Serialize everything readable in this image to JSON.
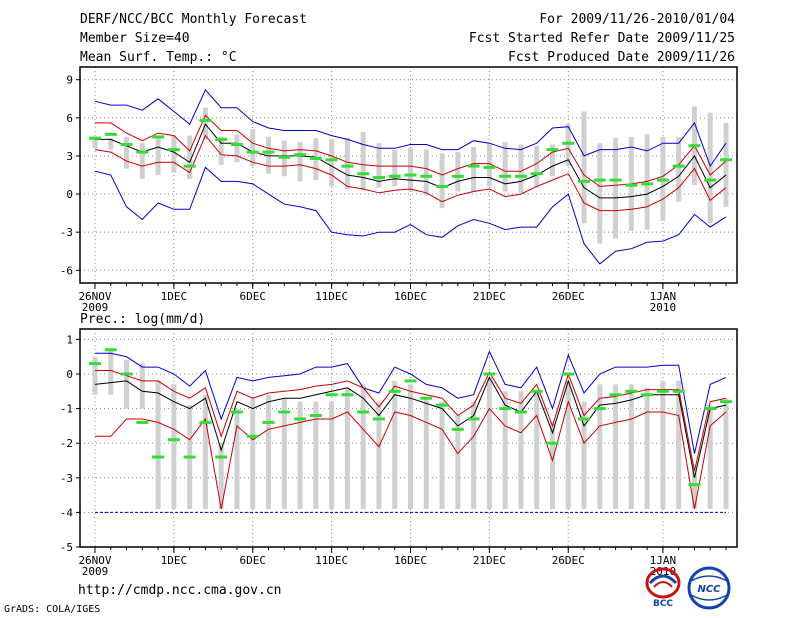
{
  "header": {
    "title": "DERF/NCC/BCC Monthly Forecast",
    "member_size": "Member Size=40",
    "variable": "Mean Surf. Temp.: °C",
    "period": "For 2009/11/26-2010/01/04",
    "started": "Fcst Started Refer Date 2009/11/25",
    "produced": "Fcst Produced Date 2009/11/26"
  },
  "footer": {
    "url": "http://cmdp.ncc.cma.gov.cn",
    "grads": "GrADS: COLA/IGES",
    "logo_left_text": "BCC",
    "logo_right_text": "NCC"
  },
  "colors": {
    "spread": "#0000cc",
    "quartile": "#cc0000",
    "mean": "#000000",
    "box": "#d0d0d0",
    "median": "#33dd33"
  },
  "chart_data": [
    {
      "type": "box-line",
      "title": "Mean Surf. Temp.: °C",
      "ylabel": "°C",
      "ylim": [
        -7,
        10
      ],
      "yticks": [
        -6,
        -3,
        0,
        3,
        6,
        9
      ],
      "x_tick_labels": [
        {
          "day": 0,
          "label": "26NOV",
          "sub": "2009"
        },
        {
          "day": 5,
          "label": "1DEC",
          "sub": ""
        },
        {
          "day": 10,
          "label": "6DEC",
          "sub": ""
        },
        {
          "day": 15,
          "label": "11DEC",
          "sub": ""
        },
        {
          "day": 20,
          "label": "16DEC",
          "sub": ""
        },
        {
          "day": 25,
          "label": "21DEC",
          "sub": ""
        },
        {
          "day": 30,
          "label": "26DEC",
          "sub": ""
        },
        {
          "day": 36,
          "label": "1JAN",
          "sub": "2010"
        }
      ],
      "days": 40,
      "mean": [
        4.3,
        4.3,
        3.8,
        3.3,
        3.7,
        3.3,
        2.5,
        5.5,
        4.0,
        4.0,
        3.3,
        3.0,
        3.0,
        3.0,
        2.9,
        2.2,
        1.5,
        1.3,
        1.0,
        1.2,
        1.1,
        1.0,
        0.5,
        1.0,
        1.3,
        1.3,
        0.8,
        1.0,
        1.5,
        2.2,
        2.7,
        0.5,
        -0.3,
        -0.3,
        -0.2,
        0.0,
        0.6,
        1.4,
        3.0,
        0.5,
        1.5
      ],
      "q_upper": [
        5.6,
        5.6,
        4.8,
        4.2,
        4.8,
        4.6,
        3.4,
        6.2,
        5.0,
        5.0,
        4.0,
        3.6,
        3.4,
        3.5,
        3.4,
        3.0,
        2.5,
        2.3,
        2.2,
        2.2,
        2.2,
        2.0,
        1.5,
        2.0,
        2.4,
        2.4,
        1.8,
        1.8,
        2.4,
        3.3,
        3.6,
        1.5,
        0.6,
        0.7,
        0.8,
        1.0,
        1.4,
        2.3,
        3.8,
        1.5,
        2.6
      ],
      "q_lower": [
        3.5,
        3.3,
        2.6,
        2.2,
        2.5,
        2.5,
        1.7,
        4.6,
        3.1,
        3.0,
        2.5,
        2.2,
        2.2,
        2.3,
        2.0,
        1.5,
        0.6,
        0.4,
        0.1,
        0.3,
        0.4,
        0.1,
        -0.6,
        -0.1,
        0.2,
        0.4,
        -0.2,
        0.0,
        0.6,
        1.1,
        1.6,
        -0.7,
        -1.3,
        -1.3,
        -1.2,
        -1.0,
        -0.4,
        0.5,
        2.0,
        -0.5,
        0.5
      ],
      "spread_upper": [
        7.3,
        7.0,
        7.0,
        6.6,
        7.5,
        6.5,
        5.5,
        8.2,
        6.8,
        6.8,
        5.7,
        5.2,
        5.0,
        5.0,
        5.0,
        4.6,
        4.3,
        3.9,
        3.6,
        3.6,
        3.9,
        3.9,
        3.5,
        3.5,
        4.2,
        4.0,
        3.6,
        3.5,
        4.0,
        5.2,
        5.3,
        3.0,
        3.5,
        3.5,
        3.7,
        3.4,
        4.0,
        4.0,
        5.6,
        2.2,
        4.0
      ],
      "spread_lower": [
        1.8,
        1.5,
        -1.0,
        -2.0,
        -0.7,
        -1.2,
        -1.2,
        2.1,
        1.0,
        1.0,
        0.8,
        0.0,
        -0.8,
        -1.0,
        -1.3,
        -3.0,
        -3.2,
        -3.3,
        -3.0,
        -3.0,
        -2.4,
        -3.2,
        -3.4,
        -2.5,
        -2.0,
        -2.3,
        -2.8,
        -2.6,
        -2.6,
        -1.0,
        0.0,
        -3.9,
        -5.5,
        -4.5,
        -4.3,
        -3.8,
        -3.7,
        -3.2,
        -1.6,
        -2.6,
        -1.8
      ],
      "box_top": [
        4.5,
        4.4,
        4.5,
        4.0,
        4.4,
        4.6,
        4.6,
        6.8,
        4.5,
        4.7,
        5.1,
        4.5,
        4.2,
        4.1,
        4.4,
        4.3,
        4.4,
        4.9,
        4.0,
        3.5,
        3.6,
        3.5,
        3.2,
        3.3,
        3.7,
        4.0,
        4.1,
        3.9,
        3.8,
        3.9,
        5.5,
        6.5,
        4.0,
        4.4,
        4.5,
        4.7,
        4.5,
        4.5,
        6.9,
        6.4,
        5.6
      ],
      "box_bottom": [
        3.6,
        3.5,
        2.0,
        1.2,
        1.5,
        1.7,
        1.2,
        4.3,
        2.3,
        2.5,
        2.2,
        1.6,
        1.4,
        1.0,
        1.1,
        0.6,
        0.4,
        0.3,
        0.5,
        0.6,
        0.2,
        -0.1,
        -1.1,
        0.2,
        0.2,
        0.6,
        0.2,
        0.1,
        0.5,
        1.4,
        2.2,
        -2.3,
        -3.9,
        -3.5,
        -2.9,
        -2.8,
        -2.1,
        -0.6,
        0.7,
        -2.3,
        -1.0
      ],
      "median": [
        4.4,
        4.7,
        3.9,
        3.3,
        4.5,
        3.5,
        2.2,
        5.8,
        4.3,
        3.9,
        3.3,
        3.3,
        2.9,
        3.1,
        2.8,
        2.7,
        2.2,
        1.6,
        1.3,
        1.4,
        1.5,
        1.4,
        0.6,
        1.4,
        2.2,
        2.1,
        1.4,
        1.4,
        1.6,
        3.5,
        4.0,
        1.0,
        1.1,
        1.1,
        0.7,
        0.8,
        1.1,
        2.2,
        3.8,
        1.1,
        2.7
      ]
    },
    {
      "type": "box-line",
      "title": "Prec.: log(mm/d)",
      "ylabel": "log(mm/d)",
      "ylim": [
        -5,
        1.3
      ],
      "yticks": [
        -5,
        -4,
        -3,
        -2,
        -1,
        0,
        1
      ],
      "x_tick_labels": [
        {
          "day": 0,
          "label": "26NOV",
          "sub": "2009"
        },
        {
          "day": 5,
          "label": "1DEC",
          "sub": ""
        },
        {
          "day": 10,
          "label": "6DEC",
          "sub": ""
        },
        {
          "day": 15,
          "label": "11DEC",
          "sub": ""
        },
        {
          "day": 20,
          "label": "16DEC",
          "sub": ""
        },
        {
          "day": 25,
          "label": "21DEC",
          "sub": ""
        },
        {
          "day": 30,
          "label": "26DEC",
          "sub": ""
        },
        {
          "day": 36,
          "label": "1JAN",
          "sub": "2010"
        }
      ],
      "days": 40,
      "floor": -4,
      "mean": [
        -0.3,
        -0.25,
        -0.2,
        -0.5,
        -0.55,
        -0.8,
        -1.0,
        -0.7,
        -2.2,
        -0.8,
        -1.0,
        -0.8,
        -0.7,
        -0.7,
        -0.6,
        -0.5,
        -0.4,
        -0.7,
        -1.2,
        -0.6,
        -0.7,
        -0.85,
        -1.0,
        -1.5,
        -1.2,
        -0.1,
        -0.9,
        -1.1,
        -0.5,
        -1.7,
        -0.2,
        -1.5,
        -0.9,
        -0.85,
        -0.75,
        -0.6,
        -0.6,
        -0.6,
        -3.0,
        -1.0,
        -0.9
      ],
      "q_upper": [
        0.1,
        0.1,
        -0.05,
        -0.2,
        -0.2,
        -0.5,
        -0.7,
        -0.4,
        -1.8,
        -0.5,
        -0.7,
        -0.55,
        -0.5,
        -0.45,
        -0.35,
        -0.3,
        -0.2,
        -0.4,
        -0.95,
        -0.35,
        -0.5,
        -0.6,
        -0.7,
        -1.2,
        -0.9,
        0.05,
        -0.7,
        -0.85,
        -0.3,
        -1.5,
        0.0,
        -1.2,
        -0.7,
        -0.65,
        -0.55,
        -0.45,
        -0.45,
        -0.45,
        -2.8,
        -0.8,
        -0.7
      ],
      "q_lower": [
        -1.8,
        -1.8,
        -1.3,
        -1.3,
        -1.4,
        -1.6,
        -1.9,
        -1.3,
        -3.9,
        -1.5,
        -1.9,
        -1.6,
        -1.5,
        -1.4,
        -1.3,
        -1.3,
        -1.1,
        -1.6,
        -2.1,
        -1.1,
        -1.2,
        -1.4,
        -1.6,
        -2.3,
        -1.8,
        -1.0,
        -1.5,
        -1.7,
        -1.2,
        -2.5,
        -0.8,
        -2.0,
        -1.5,
        -1.4,
        -1.3,
        -1.1,
        -1.1,
        -1.2,
        -3.9,
        -1.5,
        -1.1
      ],
      "spread_upper": [
        0.6,
        0.6,
        0.5,
        0.2,
        0.2,
        0.0,
        -0.35,
        0.1,
        -1.3,
        -0.1,
        -0.2,
        -0.1,
        -0.05,
        0.0,
        0.2,
        0.2,
        0.3,
        -0.4,
        -0.55,
        0.2,
        0.0,
        -0.3,
        -0.4,
        -0.7,
        -0.6,
        0.65,
        -0.3,
        -0.4,
        0.2,
        -1.0,
        0.55,
        -0.55,
        0.0,
        0.2,
        0.2,
        0.2,
        0.25,
        0.25,
        -2.3,
        -0.3,
        -0.1
      ],
      "spread_lower": [
        -4,
        -4,
        -4,
        -4,
        -4,
        -4,
        -4,
        -4,
        -4,
        -4,
        -4,
        -4,
        -4,
        -4,
        -4,
        -4,
        -4,
        -4,
        -4,
        -4,
        -4,
        -4,
        -4,
        -4,
        -4,
        -4,
        -4,
        -4,
        -4,
        -4,
        -4,
        -4,
        -4,
        -4,
        -4,
        -4,
        -4,
        -4,
        -4,
        -4,
        -4
      ],
      "box_top": [
        0.5,
        0.7,
        0.4,
        0.3,
        -0.2,
        -0.3,
        -0.9,
        -0.6,
        -2.0,
        -1.0,
        -0.7,
        -0.6,
        -0.7,
        -0.8,
        -0.8,
        -0.8,
        -0.4,
        -0.3,
        -0.8,
        -0.2,
        -0.3,
        -0.7,
        -0.8,
        -1.2,
        -0.8,
        -0.1,
        -0.5,
        -0.5,
        -0.5,
        -1.4,
        -0.2,
        -0.8,
        -0.3,
        -0.3,
        -0.3,
        -0.4,
        -0.2,
        -0.2,
        -2.8,
        -0.9,
        -0.7
      ],
      "box_bottom": [
        -0.6,
        -0.6,
        -1.0,
        -1.0,
        -3.9,
        -3.9,
        -3.9,
        -3.9,
        -3.9,
        -3.9,
        -3.9,
        -3.9,
        -3.9,
        -3.9,
        -3.9,
        -3.9,
        -3.9,
        -3.9,
        -3.9,
        -3.9,
        -3.9,
        -3.9,
        -3.9,
        -3.9,
        -3.9,
        -3.9,
        -3.9,
        -3.9,
        -3.9,
        -3.9,
        -3.9,
        -3.9,
        -3.9,
        -3.9,
        -3.9,
        -3.9,
        -3.9,
        -3.9,
        -3.9,
        -3.9,
        -3.9
      ],
      "median": [
        0.3,
        0.7,
        0.0,
        -1.4,
        -2.4,
        -1.9,
        -2.4,
        -1.4,
        -2.4,
        -1.1,
        -1.8,
        -1.4,
        -1.1,
        -1.3,
        -1.2,
        -0.6,
        -0.6,
        -1.1,
        -1.3,
        -0.5,
        -0.2,
        -0.7,
        -0.9,
        -1.6,
        -1.3,
        0.0,
        -1.0,
        -1.1,
        -0.5,
        -2.0,
        0.0,
        -1.3,
        -1.0,
        -0.6,
        -0.5,
        -0.6,
        -0.5,
        -0.5,
        -3.2,
        -1.0,
        -0.8
      ]
    }
  ]
}
